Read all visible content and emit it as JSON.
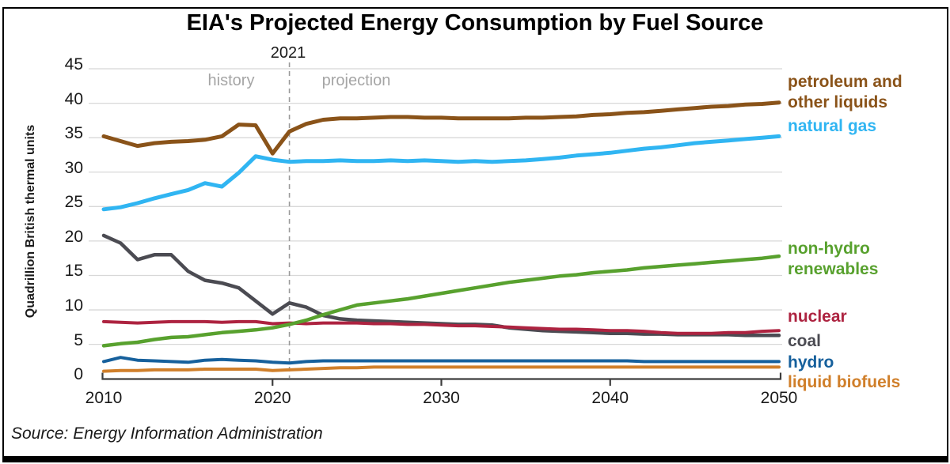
{
  "title": "EIA's Projected Energy Consumption by Fuel Source",
  "source_note": "Source: Energy Information Administration",
  "colors": {
    "gridline": "#d8d8d8",
    "axis": "#3d3d3d",
    "boundary_line": "#9a9a9a",
    "phase_text": "#a5a5a5",
    "tick_text": "#1a1a1a"
  },
  "chart_data": {
    "type": "line",
    "title": "EIA's Projected Energy Consumption by Fuel Source",
    "xlabel": "",
    "ylabel": "Quadrillion British thermal units",
    "ylim": [
      0,
      45
    ],
    "yticks": [
      0,
      5,
      10,
      15,
      20,
      25,
      30,
      35,
      40,
      45
    ],
    "xticks": [
      2010,
      2020,
      2030,
      2040,
      2050
    ],
    "x_start": 2010,
    "x_end": 2050,
    "grid": "horizontal",
    "legend_position": "inline-right",
    "boundary": {
      "year": 2021,
      "year_label": "2021",
      "left_label": "history",
      "right_label": "projection"
    },
    "series": [
      {
        "id": "coal",
        "name": "coal",
        "label": "coal",
        "color": "#4b4b52",
        "values": [
          20.8,
          19.7,
          17.3,
          18.0,
          18.0,
          15.6,
          14.3,
          13.9,
          13.2,
          11.3,
          9.4,
          11.0,
          10.4,
          9.2,
          8.7,
          8.5,
          8.4,
          8.3,
          8.2,
          8.1,
          8.0,
          7.9,
          7.9,
          7.8,
          7.4,
          7.2,
          7.0,
          6.9,
          6.8,
          6.7,
          6.6,
          6.6,
          6.5,
          6.5,
          6.4,
          6.4,
          6.4,
          6.4,
          6.3,
          6.3,
          6.3
        ]
      },
      {
        "id": "nuclear",
        "name": "nuclear",
        "label": "nuclear",
        "color": "#ad2340",
        "values": [
          8.3,
          8.2,
          8.1,
          8.2,
          8.3,
          8.3,
          8.3,
          8.2,
          8.3,
          8.3,
          8.0,
          8.1,
          8.0,
          8.1,
          8.1,
          8.1,
          8.0,
          8.0,
          7.9,
          7.9,
          7.8,
          7.7,
          7.7,
          7.6,
          7.5,
          7.4,
          7.3,
          7.2,
          7.2,
          7.1,
          7.0,
          7.0,
          6.9,
          6.7,
          6.6,
          6.6,
          6.6,
          6.7,
          6.7,
          6.9,
          7.0
        ]
      },
      {
        "id": "renewables",
        "name": "non-hydro renewables",
        "label": "non-hydro\nrenewables",
        "color": "#58a12e",
        "values": [
          4.8,
          5.1,
          5.3,
          5.7,
          6.0,
          6.1,
          6.4,
          6.7,
          6.9,
          7.1,
          7.4,
          7.9,
          8.5,
          9.3,
          10.0,
          10.7,
          11.0,
          11.3,
          11.6,
          12.0,
          12.4,
          12.8,
          13.2,
          13.6,
          14.0,
          14.3,
          14.6,
          14.9,
          15.1,
          15.4,
          15.6,
          15.8,
          16.1,
          16.3,
          16.5,
          16.7,
          16.9,
          17.1,
          17.3,
          17.5,
          17.8
        ]
      },
      {
        "id": "biofuels",
        "name": "liquid biofuels",
        "label": "liquid biofuels",
        "color": "#d07f2a",
        "values": [
          1.1,
          1.2,
          1.2,
          1.3,
          1.3,
          1.3,
          1.4,
          1.4,
          1.4,
          1.4,
          1.2,
          1.3,
          1.4,
          1.5,
          1.6,
          1.6,
          1.7,
          1.7,
          1.7,
          1.7,
          1.7,
          1.7,
          1.7,
          1.7,
          1.7,
          1.7,
          1.7,
          1.7,
          1.7,
          1.7,
          1.7,
          1.7,
          1.7,
          1.7,
          1.7,
          1.7,
          1.7,
          1.7,
          1.7,
          1.7,
          1.7
        ]
      },
      {
        "id": "hydro",
        "name": "hydro",
        "label": "hydro",
        "color": "#16609c",
        "values": [
          2.5,
          3.1,
          2.7,
          2.6,
          2.5,
          2.4,
          2.7,
          2.8,
          2.7,
          2.6,
          2.4,
          2.3,
          2.5,
          2.6,
          2.6,
          2.6,
          2.6,
          2.6,
          2.6,
          2.6,
          2.6,
          2.6,
          2.6,
          2.6,
          2.6,
          2.6,
          2.6,
          2.6,
          2.6,
          2.6,
          2.6,
          2.6,
          2.5,
          2.5,
          2.5,
          2.5,
          2.5,
          2.5,
          2.5,
          2.5,
          2.5
        ]
      },
      {
        "id": "natural_gas",
        "name": "natural gas",
        "label": "natural gas",
        "color": "#30b5f2",
        "values": [
          24.6,
          24.9,
          25.5,
          26.2,
          26.8,
          27.4,
          28.4,
          27.9,
          29.9,
          32.3,
          31.8,
          31.5,
          31.6,
          31.6,
          31.7,
          31.6,
          31.6,
          31.7,
          31.6,
          31.7,
          31.6,
          31.5,
          31.6,
          31.5,
          31.6,
          31.7,
          31.9,
          32.1,
          32.4,
          32.6,
          32.8,
          33.1,
          33.4,
          33.6,
          33.9,
          34.2,
          34.4,
          34.6,
          34.8,
          35.0,
          35.2
        ]
      },
      {
        "id": "petroleum",
        "name": "petroleum and other liquids",
        "label": "petroleum and\nother liquids",
        "color": "#8a5319",
        "values": [
          35.2,
          34.5,
          33.8,
          34.2,
          34.4,
          34.5,
          34.7,
          35.2,
          36.9,
          36.8,
          32.7,
          35.9,
          37.0,
          37.6,
          37.8,
          37.8,
          37.9,
          38.0,
          38.0,
          37.9,
          37.9,
          37.8,
          37.8,
          37.8,
          37.8,
          37.9,
          37.9,
          38.0,
          38.1,
          38.3,
          38.4,
          38.6,
          38.7,
          38.9,
          39.1,
          39.3,
          39.5,
          39.6,
          39.8,
          39.9,
          40.1
        ]
      }
    ]
  }
}
